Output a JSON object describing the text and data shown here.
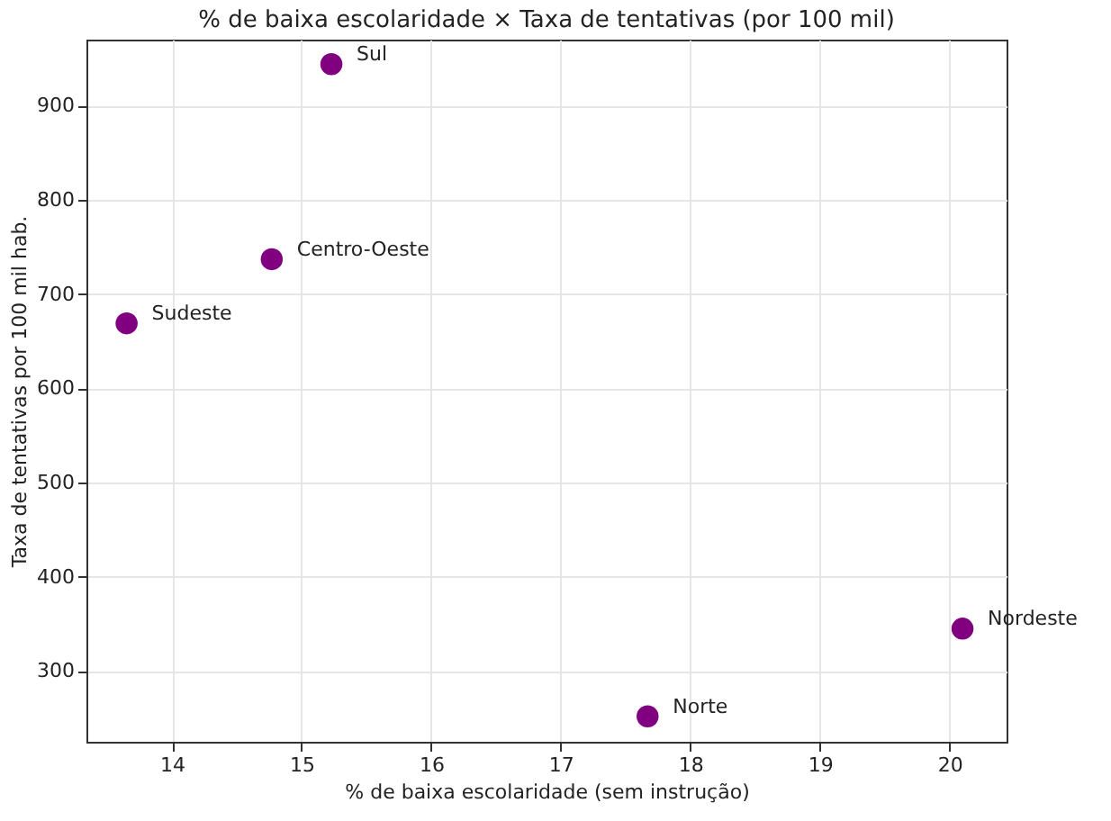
{
  "chart_data": {
    "type": "scatter",
    "title": "% de baixa escolaridade × Taxa de tentativas (por 100 mil)",
    "xlabel": "% de baixa escolaridade (sem instrução)",
    "ylabel": "Taxa de tentativas por 100 mil hab.",
    "x": [
      15.23,
      14.77,
      13.65,
      20.1,
      17.67
    ],
    "series": [
      {
        "color": "#800080",
        "values": [
          944,
          737,
          669,
          345,
          252
        ]
      }
    ],
    "annotations": [
      {
        "text": "Sul",
        "x": 15.23,
        "y": 944
      },
      {
        "text": "Centro-Oeste",
        "x": 14.77,
        "y": 737
      },
      {
        "text": "Sudeste",
        "x": 13.65,
        "y": 669
      },
      {
        "text": "Nordeste",
        "x": 20.1,
        "y": 345
      },
      {
        "text": "Norte",
        "x": 17.67,
        "y": 252
      }
    ],
    "xlim": [
      13.34,
      20.44
    ],
    "xticks": [
      14,
      15,
      16,
      17,
      18,
      19,
      20
    ],
    "ylim": [
      225,
      970
    ],
    "yticks": [
      300,
      400,
      500,
      600,
      700,
      800,
      900
    ],
    "grid": true,
    "marker": "circle"
  }
}
